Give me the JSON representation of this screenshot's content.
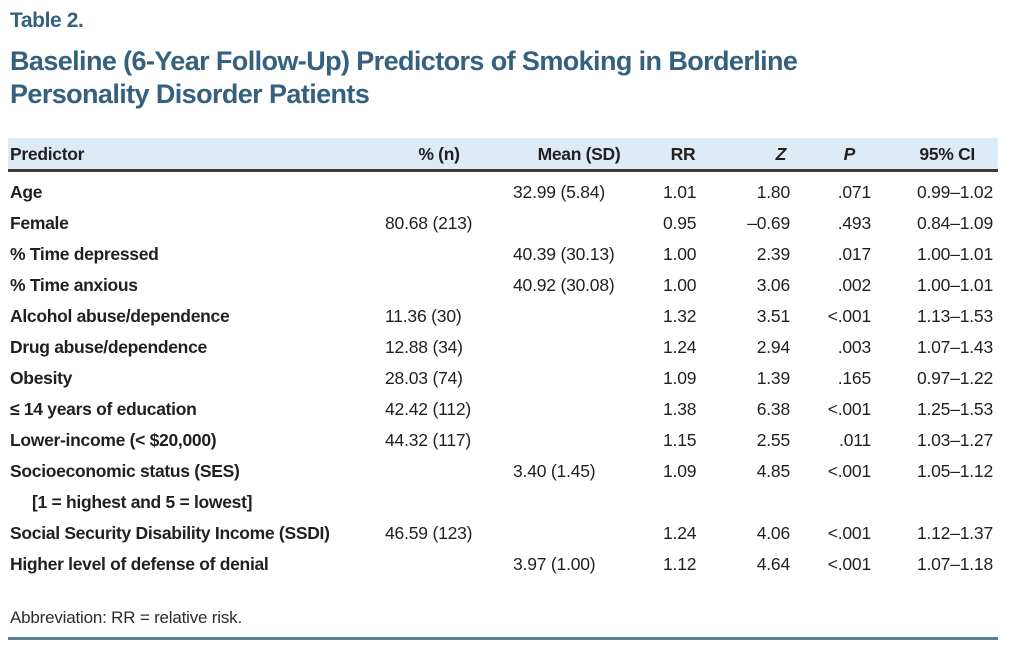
{
  "table_label": "Table 2.",
  "title_lines": [
    "Baseline (6-Year Follow-Up) Predictors of Smoking in Borderline",
    "Personality Disorder Patients"
  ],
  "columns": [
    "Predictor",
    "% (n)",
    "Mean (SD)",
    "RR",
    "Z",
    "P",
    "95% CI"
  ],
  "rows": [
    {
      "predictor": "Age",
      "pct_n": "",
      "mean_sd": "32.99 (5.84)",
      "rr": "1.01",
      "z": "1.80",
      "p": ".071",
      "ci": "0.99–1.02"
    },
    {
      "predictor": "Female",
      "pct_n": "80.68 (213)",
      "mean_sd": "",
      "rr": "0.95",
      "z": "–0.69",
      "p": ".493",
      "ci": "0.84–1.09"
    },
    {
      "predictor": "% Time depressed",
      "pct_n": "",
      "mean_sd": "40.39 (30.13)",
      "rr": "1.00",
      "z": "2.39",
      "p": ".017",
      "ci": "1.00–1.01"
    },
    {
      "predictor": "% Time anxious",
      "pct_n": "",
      "mean_sd": "40.92 (30.08)",
      "rr": "1.00",
      "z": "3.06",
      "p": ".002",
      "ci": "1.00–1.01"
    },
    {
      "predictor": "Alcohol abuse/dependence",
      "pct_n": "11.36 (30)",
      "mean_sd": "",
      "rr": "1.32",
      "z": "3.51",
      "p": "<.001",
      "ci": "1.13–1.53"
    },
    {
      "predictor": "Drug abuse/dependence",
      "pct_n": "12.88 (34)",
      "mean_sd": "",
      "rr": "1.24",
      "z": "2.94",
      "p": ".003",
      "ci": "1.07–1.43"
    },
    {
      "predictor": "Obesity",
      "pct_n": "28.03 (74)",
      "mean_sd": "",
      "rr": "1.09",
      "z": "1.39",
      "p": ".165",
      "ci": "0.97–1.22"
    },
    {
      "predictor": "≤ 14 years of education",
      "pct_n": "42.42 (112)",
      "mean_sd": "",
      "rr": "1.38",
      "z": "6.38",
      "p": "<.001",
      "ci": "1.25–1.53"
    },
    {
      "predictor": "Lower-income (< $20,000)",
      "pct_n": "44.32 (117)",
      "mean_sd": "",
      "rr": "1.15",
      "z": "2.55",
      "p": ".011",
      "ci": "1.03–1.27"
    },
    {
      "predictor": "Socioeconomic status (SES)",
      "predictor_sub": "[1 = highest and 5 = lowest]",
      "pct_n": "",
      "mean_sd": "3.40 (1.45)",
      "rr": "1.09",
      "z": "4.85",
      "p": "<.001",
      "ci": "1.05–1.12"
    },
    {
      "predictor": "Social Security Disability Income (SSDI)",
      "pct_n": "46.59 (123)",
      "mean_sd": "",
      "rr": "1.24",
      "z": "4.06",
      "p": "<.001",
      "ci": "1.12–1.37"
    },
    {
      "predictor": "Higher level of defense of denial",
      "pct_n": "",
      "mean_sd": "3.97 (1.00)",
      "rr": "1.12",
      "z": "4.64",
      "p": "<.001",
      "ci": "1.07–1.18"
    }
  ],
  "footnote": "Abbreviation: RR = relative risk.",
  "colors": {
    "title_blue": "#35607e",
    "header_band_bg": "#dcebf5",
    "header_rule_dark": "#3b3b3b",
    "bottom_rule_blue": "#5d7e97",
    "body_text": "#231f20"
  }
}
